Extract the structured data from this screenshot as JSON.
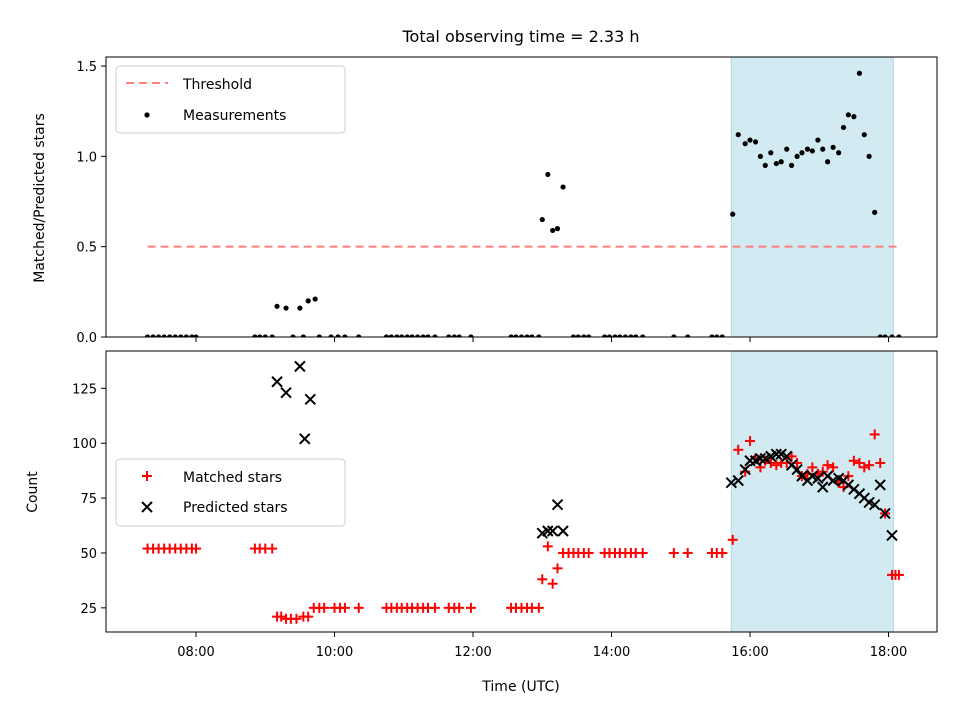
{
  "chart_data": [
    {
      "type": "scatter",
      "title": "Total observing time = 2.33 h",
      "xlabel": "",
      "ylabel": "Matched/Predicted stars",
      "ylim": [
        0,
        1.55
      ],
      "xlim": [
        6.7,
        18.7
      ],
      "yticks": [
        0.0,
        0.5,
        1.0,
        1.5
      ],
      "ytick_labels": [
        "0.0",
        "0.5",
        "1.0",
        "1.5"
      ],
      "shaded_x_range": [
        15.73,
        18.07
      ],
      "shade_color": "#add8e6",
      "legend_position": "top-left",
      "threshold": {
        "name": "Threshold",
        "value": 0.5,
        "x": [
          7.3,
          18.15
        ],
        "color": "#ff7f7f"
      },
      "series": [
        {
          "name": "Measurements",
          "color": "#000000",
          "x": [
            7.3,
            7.38,
            7.46,
            7.54,
            7.62,
            7.7,
            7.78,
            7.86,
            7.94,
            8.0,
            8.85,
            8.92,
            9.0,
            9.1,
            9.17,
            9.3,
            9.4,
            9.5,
            9.55,
            9.62,
            9.72,
            9.78,
            9.95,
            10.05,
            10.15,
            10.35,
            10.75,
            10.82,
            10.9,
            10.97,
            11.05,
            11.12,
            11.2,
            11.28,
            11.35,
            11.45,
            11.65,
            11.73,
            11.8,
            11.97,
            12.55,
            12.62,
            12.7,
            12.78,
            12.85,
            12.95,
            13.0,
            13.08,
            13.15,
            13.22,
            13.3,
            13.45,
            13.52,
            13.6,
            13.67,
            13.9,
            13.97,
            14.05,
            14.12,
            14.2,
            14.28,
            14.35,
            14.45,
            14.9,
            15.1,
            15.45,
            15.52,
            15.6,
            15.75,
            15.83,
            15.93,
            16.0,
            16.08,
            16.15,
            16.22,
            16.3,
            16.38,
            16.45,
            16.53,
            16.6,
            16.68,
            16.75,
            16.83,
            16.9,
            16.98,
            17.05,
            17.12,
            17.2,
            17.28,
            17.35,
            17.42,
            17.5,
            17.58,
            17.65,
            17.72,
            17.8,
            17.88,
            17.95,
            18.05,
            18.15
          ],
          "y": [
            0,
            0,
            0,
            0,
            0,
            0,
            0,
            0,
            0,
            0,
            0,
            0,
            0,
            0,
            0.17,
            0.16,
            0,
            0.16,
            0,
            0.2,
            0.21,
            0,
            0,
            0,
            0,
            0,
            0,
            0,
            0,
            0,
            0,
            0,
            0,
            0,
            0,
            0,
            0,
            0,
            0,
            0,
            0,
            0,
            0,
            0,
            0,
            0,
            0.65,
            0.9,
            0.59,
            0.6,
            0.83,
            0,
            0,
            0,
            0,
            0,
            0,
            0,
            0,
            0,
            0,
            0,
            0,
            0,
            0,
            0,
            0,
            0,
            0.68,
            1.12,
            1.07,
            1.09,
            1.08,
            1.0,
            0.95,
            1.02,
            0.96,
            0.97,
            1.04,
            0.95,
            1.0,
            1.02,
            1.04,
            1.03,
            1.09,
            1.04,
            0.97,
            1.05,
            1.02,
            1.16,
            1.23,
            1.22,
            1.46,
            1.12,
            1.0,
            0.69,
            0,
            0,
            0,
            0
          ]
        }
      ]
    },
    {
      "type": "scatter",
      "title": "",
      "xlabel": "Time (UTC)",
      "ylabel": "Count",
      "ylim": [
        14,
        142
      ],
      "xlim": [
        6.7,
        18.7
      ],
      "yticks": [
        25,
        50,
        75,
        100,
        125
      ],
      "ytick_labels": [
        "25",
        "50",
        "75",
        "100",
        "125"
      ],
      "xticks": [
        8,
        10,
        12,
        14,
        16,
        18
      ],
      "xtick_labels": [
        "08:00",
        "10:00",
        "12:00",
        "14:00",
        "16:00",
        "18:00"
      ],
      "shaded_x_range": [
        15.73,
        18.07
      ],
      "shade_color": "#add8e6",
      "legend_position": "center-left",
      "series": [
        {
          "name": "Matched stars",
          "marker": "+",
          "color": "#ff0000",
          "x": [
            7.3,
            7.38,
            7.46,
            7.54,
            7.62,
            7.7,
            7.78,
            7.86,
            7.94,
            8.0,
            8.85,
            8.92,
            9.0,
            9.1,
            9.17,
            9.23,
            9.3,
            9.37,
            9.45,
            9.55,
            9.62,
            9.7,
            9.78,
            9.85,
            10.0,
            10.08,
            10.15,
            10.35,
            10.75,
            10.82,
            10.9,
            10.97,
            11.05,
            11.12,
            11.2,
            11.28,
            11.35,
            11.45,
            11.65,
            11.73,
            11.8,
            11.97,
            12.55,
            12.62,
            12.7,
            12.78,
            12.85,
            12.95,
            13.0,
            13.08,
            13.15,
            13.22,
            13.3,
            13.38,
            13.45,
            13.52,
            13.6,
            13.67,
            13.9,
            13.97,
            14.05,
            14.12,
            14.2,
            14.28,
            14.35,
            14.45,
            14.9,
            15.1,
            15.45,
            15.52,
            15.6,
            15.75,
            15.83,
            15.93,
            16.0,
            16.08,
            16.15,
            16.22,
            16.3,
            16.38,
            16.45,
            16.53,
            16.6,
            16.68,
            16.75,
            16.83,
            16.9,
            16.98,
            17.05,
            17.12,
            17.2,
            17.28,
            17.35,
            17.42,
            17.5,
            17.58,
            17.65,
            17.72,
            17.8,
            17.88,
            17.95,
            18.05,
            18.1,
            18.15
          ],
          "y": [
            52,
            52,
            52,
            52,
            52,
            52,
            52,
            52,
            52,
            52,
            52,
            52,
            52,
            52,
            21,
            21,
            20,
            20,
            20,
            21,
            21,
            25,
            25,
            25,
            25,
            25,
            25,
            25,
            25,
            25,
            25,
            25,
            25,
            25,
            25,
            25,
            25,
            25,
            25,
            25,
            25,
            25,
            25,
            25,
            25,
            25,
            25,
            25,
            38,
            53,
            36,
            43,
            50,
            50,
            50,
            50,
            50,
            50,
            50,
            50,
            50,
            50,
            50,
            50,
            50,
            50,
            50,
            50,
            50,
            50,
            50,
            56,
            97,
            87,
            101,
            93,
            89,
            92,
            91,
            90,
            91,
            91,
            94,
            91,
            85,
            86,
            89,
            86,
            87,
            90,
            89,
            82,
            80,
            85,
            92,
            91,
            89,
            90,
            104,
            91,
            68,
            40,
            40,
            40
          ]
        },
        {
          "name": "Predicted stars",
          "marker": "x",
          "color": "#000000",
          "x": [
            9.17,
            9.3,
            9.5,
            9.57,
            9.65,
            13.0,
            13.08,
            13.15,
            13.22,
            13.3,
            15.73,
            15.83,
            15.93,
            16.0,
            16.08,
            16.15,
            16.22,
            16.3,
            16.38,
            16.45,
            16.53,
            16.6,
            16.68,
            16.75,
            16.83,
            16.9,
            16.98,
            17.05,
            17.12,
            17.2,
            17.28,
            17.35,
            17.42,
            17.5,
            17.58,
            17.65,
            17.72,
            17.8,
            17.88,
            17.95,
            18.05
          ],
          "y": [
            128,
            123,
            135,
            102,
            120,
            59,
            60,
            60,
            72,
            60,
            82,
            83,
            88,
            92,
            92,
            93,
            93,
            94,
            95,
            95,
            94,
            90,
            88,
            85,
            83,
            85,
            84,
            80,
            85,
            83,
            84,
            83,
            81,
            79,
            77,
            75,
            73,
            72,
            81,
            68,
            58
          ]
        }
      ]
    }
  ]
}
